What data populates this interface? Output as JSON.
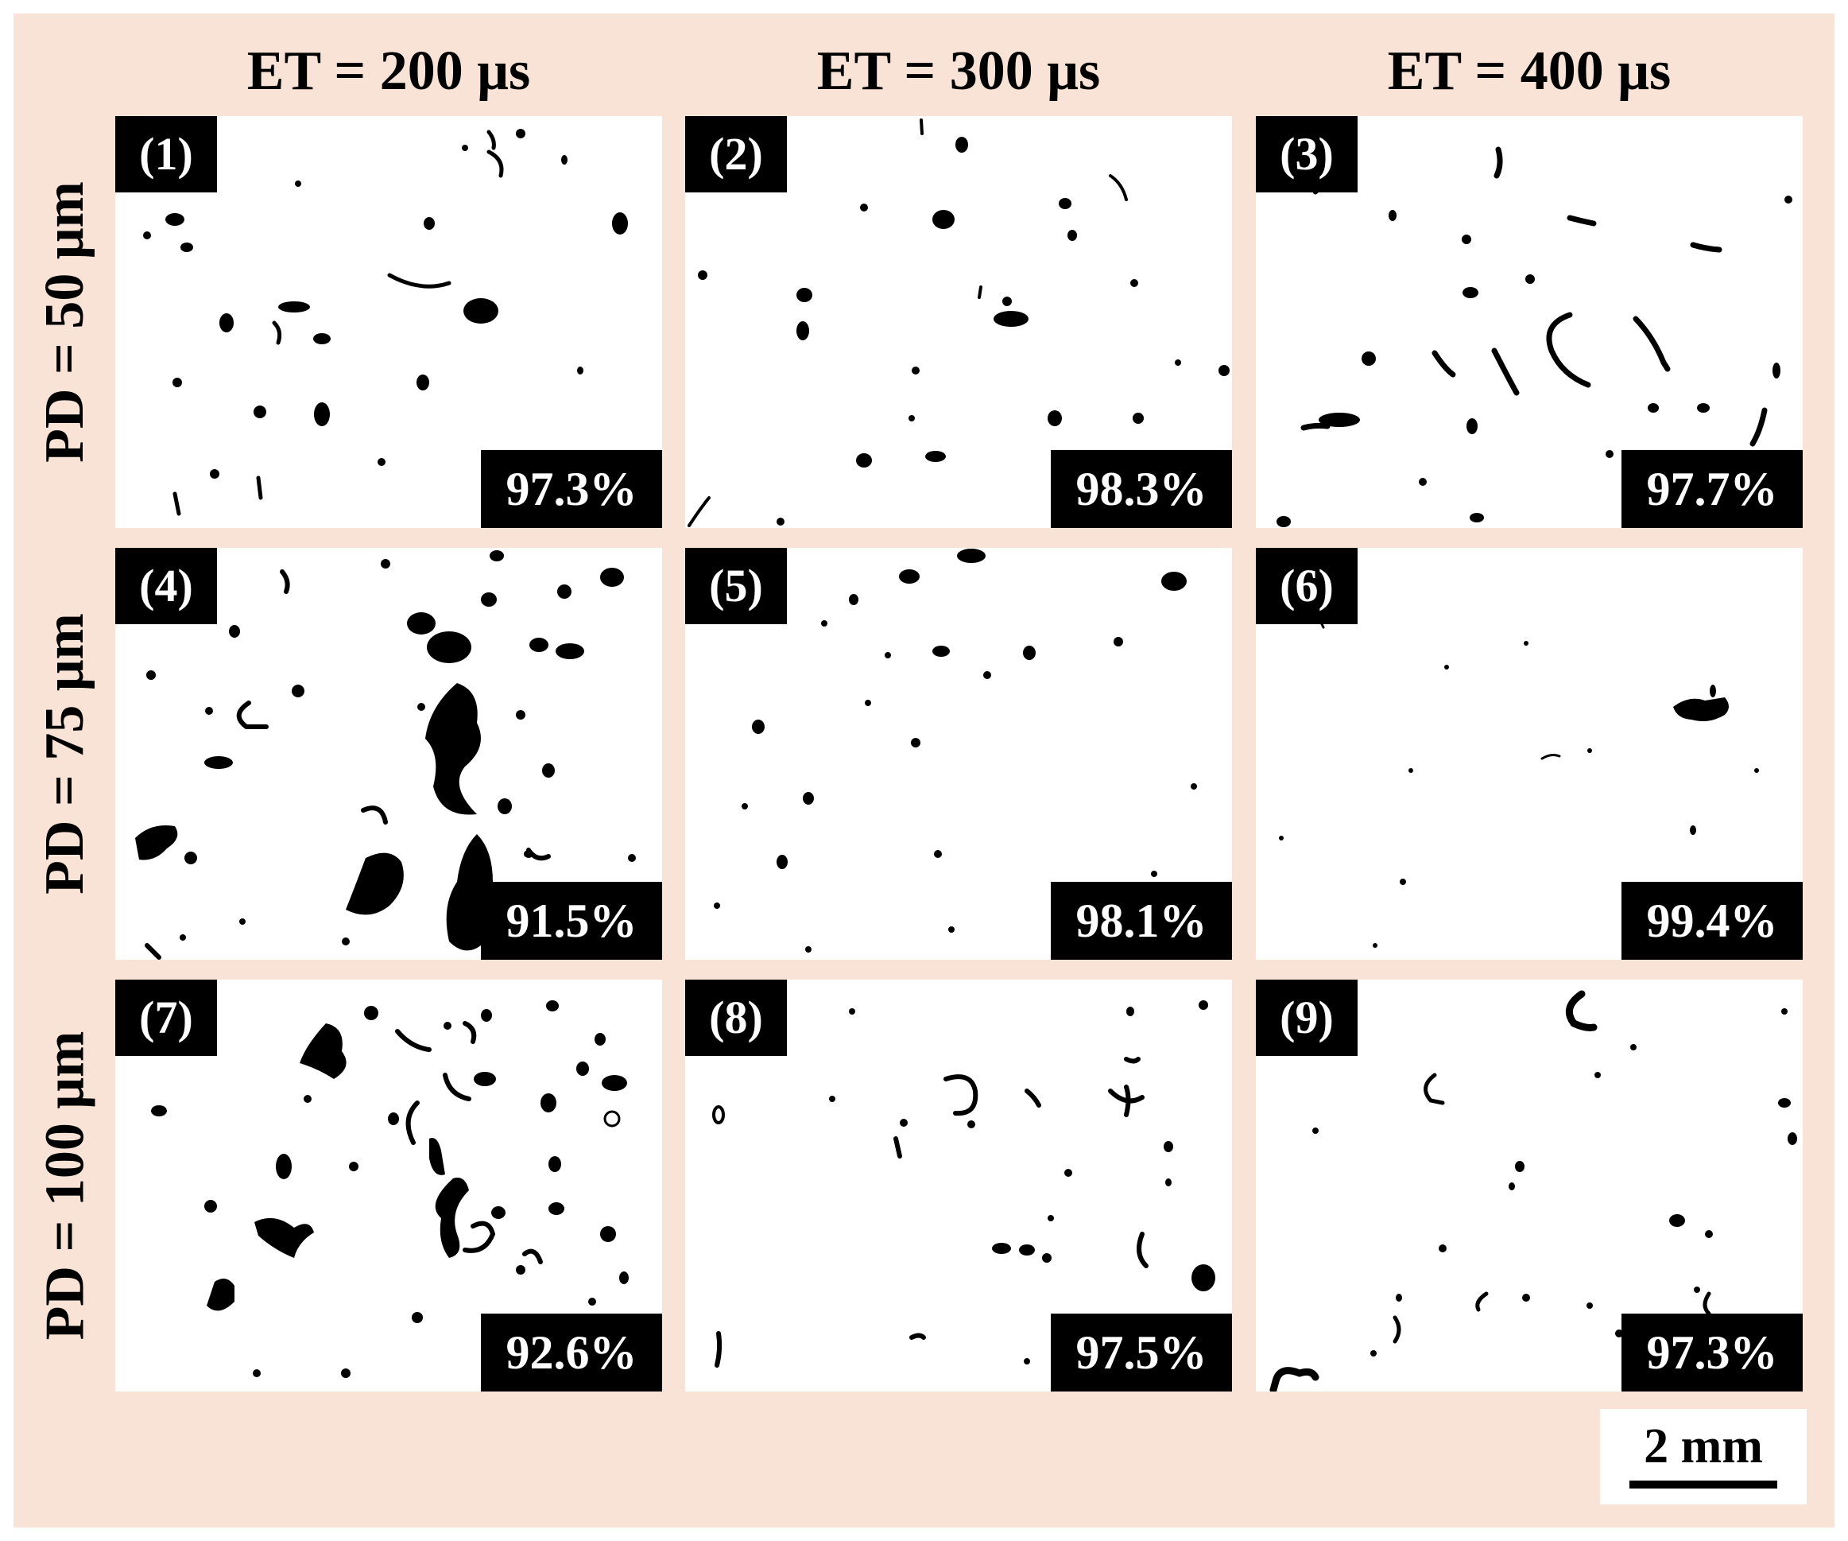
{
  "column_headers": [
    "ET = 200 μs",
    "ET = 300 μs",
    "ET = 400 μs"
  ],
  "row_headers": [
    "PD = 50 μm",
    "PD = 75 μm",
    "PD = 100 μm"
  ],
  "panels": [
    {
      "id": "(1)",
      "density": "97.3%"
    },
    {
      "id": "(2)",
      "density": "98.3%"
    },
    {
      "id": "(3)",
      "density": "97.7%"
    },
    {
      "id": "(4)",
      "density": "91.5%"
    },
    {
      "id": "(5)",
      "density": "98.1%"
    },
    {
      "id": "(6)",
      "density": "99.4%"
    },
    {
      "id": "(7)",
      "density": "92.6%"
    },
    {
      "id": "(8)",
      "density": "97.5%"
    },
    {
      "id": "(9)",
      "density": "97.3%"
    }
  ],
  "scale_bar": {
    "label": "2 mm"
  },
  "colors": {
    "background": "#f9e2d6",
    "pore": "#000000",
    "image": "#ffffff"
  }
}
